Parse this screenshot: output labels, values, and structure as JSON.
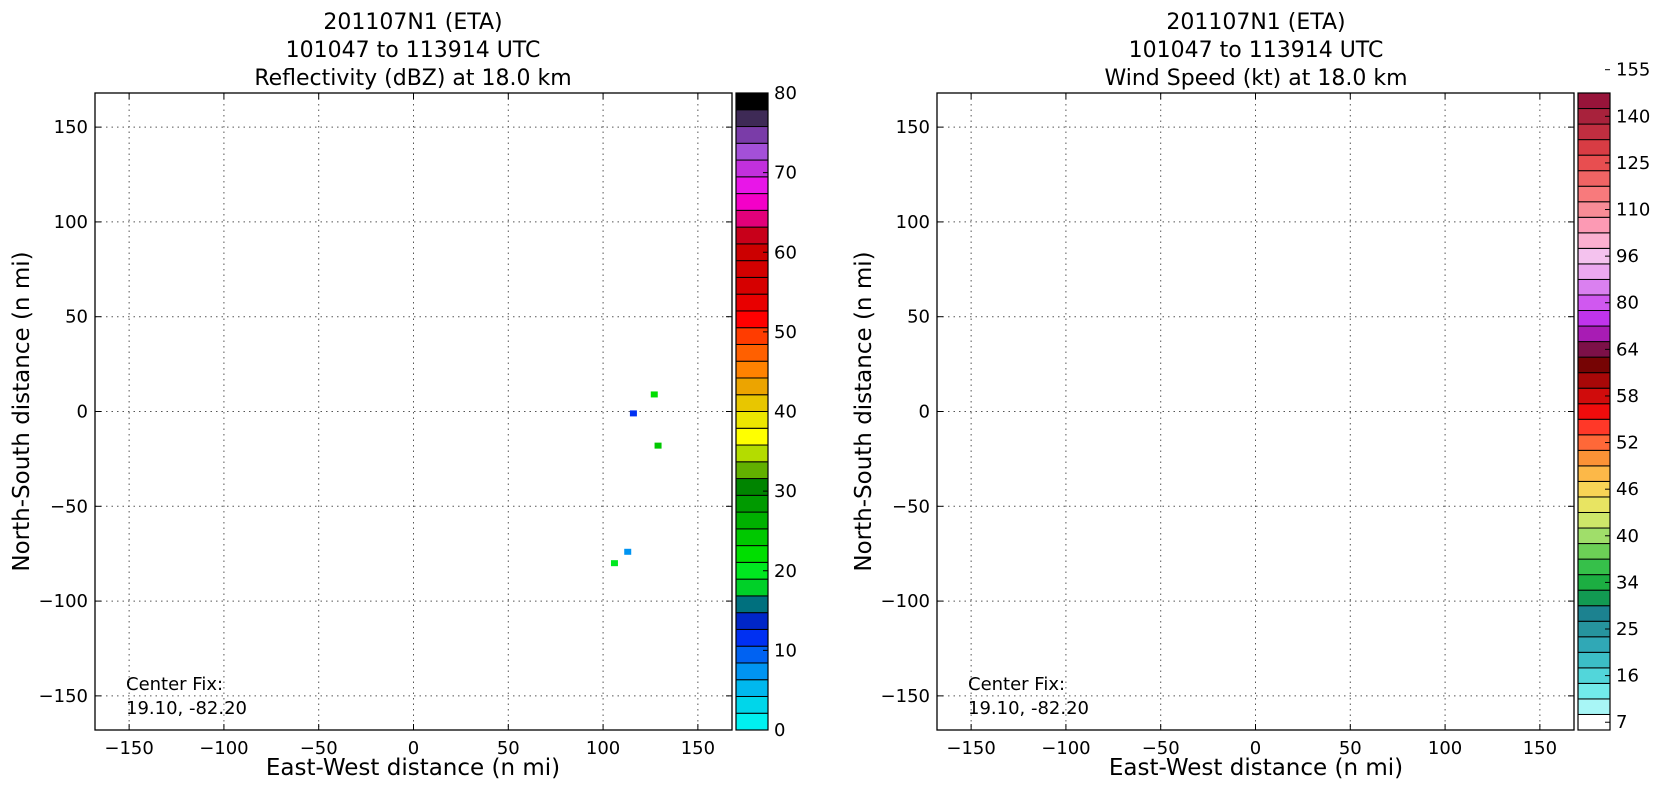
{
  "chart_data": [
    {
      "type": "heatmap",
      "title_lines": [
        "201107N1 (ETA)",
        "101047 to 113914 UTC",
        "Reflectivity (dBZ) at 18.0 km"
      ],
      "xlabel": "East-West distance (n mi)",
      "ylabel": "North-South distance (n mi)",
      "xlim": [
        -168,
        168
      ],
      "ylim": [
        -168,
        168
      ],
      "xticks": [
        -150,
        -100,
        -50,
        0,
        50,
        100,
        150
      ],
      "yticks": [
        -150,
        -100,
        -50,
        0,
        50,
        100,
        150
      ],
      "xtick_labels": [
        "−150",
        "−100",
        "−50",
        "0",
        "50",
        "100",
        "150"
      ],
      "ytick_labels": [
        "−150",
        "−100",
        "−50",
        "0",
        "50",
        "100",
        "150"
      ],
      "grid": true,
      "annotation_lines": [
        "Center Fix:",
        "19.10, -82.20"
      ],
      "cells": [
        {
          "x": 116,
          "y": -1,
          "value": 12
        },
        {
          "x": 127,
          "y": 9,
          "value": 22
        },
        {
          "x": 129,
          "y": -18,
          "value": 24
        },
        {
          "x": 113,
          "y": -74,
          "value": 8
        },
        {
          "x": 106,
          "y": -80,
          "value": 20
        }
      ],
      "colorbar": {
        "range": [
          0,
          80
        ],
        "ticks": [
          "0",
          "10",
          "20",
          "30",
          "40",
          "50",
          "60",
          "70",
          "80"
        ],
        "colors": [
          "#00f0f0",
          "#00d6ea",
          "#00b8ee",
          "#0094f2",
          "#0062f2",
          "#0030f2",
          "#0026c8",
          "#00707e",
          "#00d028",
          "#00e820",
          "#00de00",
          "#00c800",
          "#00b000",
          "#009a00",
          "#008400",
          "#62b000",
          "#b4dc00",
          "#ffff00",
          "#ede600",
          "#e8c600",
          "#eca400",
          "#ff8200",
          "#ff6000",
          "#ff3c00",
          "#ff0000",
          "#e80000",
          "#d60000",
          "#d20000",
          "#cc0000",
          "#c8001a",
          "#e2007a",
          "#f400c8",
          "#e816e8",
          "#c230dc",
          "#a450d8",
          "#7a3ca8",
          "#3e2a56",
          "#000000"
        ]
      }
    },
    {
      "type": "heatmap",
      "title_lines": [
        "201107N1 (ETA)",
        "101047 to 113914 UTC",
        "Wind Speed (kt) at 18.0 km"
      ],
      "xlabel": "East-West distance (n mi)",
      "ylabel": "North-South distance (n mi)",
      "xlim": [
        -168,
        168
      ],
      "ylim": [
        -168,
        168
      ],
      "xticks": [
        -150,
        -100,
        -50,
        0,
        50,
        100,
        150
      ],
      "yticks": [
        -150,
        -100,
        -50,
        0,
        50,
        100,
        150
      ],
      "xtick_labels": [
        "−150",
        "−100",
        "−50",
        "0",
        "50",
        "100",
        "150"
      ],
      "ytick_labels": [
        "−150",
        "−100",
        "−50",
        "0",
        "50",
        "100",
        "150"
      ],
      "grid": true,
      "annotation_lines": [
        "Center Fix:",
        "19.10, -82.20"
      ],
      "cells": [],
      "colorbar": {
        "ticks": [
          "7",
          "16",
          "25",
          "34",
          "40",
          "46",
          "52",
          "58",
          "64",
          "80",
          "96",
          "110",
          "125",
          "140",
          "155"
        ],
        "colors": [
          "#ffffff",
          "#a8f6f6",
          "#72eaea",
          "#52d6da",
          "#3cbec6",
          "#30a8b6",
          "#26949e",
          "#1c8290",
          "#129a52",
          "#1cae42",
          "#36c04a",
          "#6cd056",
          "#a0de6a",
          "#cee66a",
          "#e8e462",
          "#f8d456",
          "#fcb848",
          "#fc9236",
          "#ff6838",
          "#ff3828",
          "#f00c0c",
          "#d00c0c",
          "#a80808",
          "#760404",
          "#7c1048",
          "#a81cb4",
          "#c034ec",
          "#d058f0",
          "#da80f0",
          "#eca8f0",
          "#f4c2ee",
          "#fcb0d0",
          "#fc9ab4",
          "#f88c96",
          "#f87a7c",
          "#f06464",
          "#e84e50",
          "#d83c44",
          "#c02e40",
          "#a8223c",
          "#98143a"
        ]
      }
    }
  ]
}
